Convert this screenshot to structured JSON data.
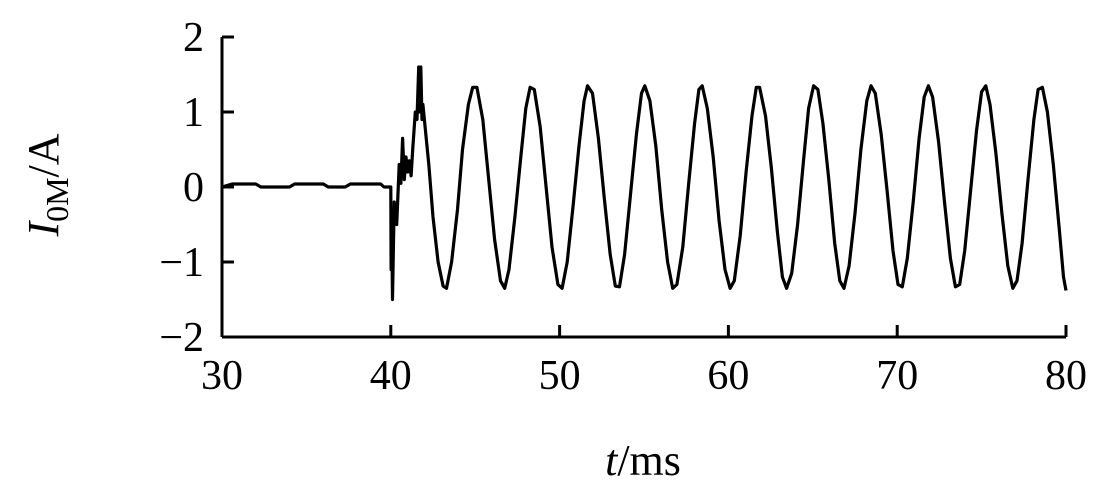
{
  "chart_data": {
    "type": "line",
    "title": "",
    "xlabel": {
      "var": "t",
      "unit": "/ms"
    },
    "ylabel": {
      "var": "I",
      "sub": "0M",
      "unit": "/A"
    },
    "xlim": [
      30,
      80
    ],
    "ylim": [
      -2,
      2
    ],
    "xticks": [
      30,
      40,
      50,
      60,
      70,
      80
    ],
    "yticks": [
      2,
      1,
      0,
      -1,
      -2
    ],
    "ytick_labels": [
      "2",
      "1",
      "0",
      "−1",
      "−2"
    ],
    "grid": false,
    "series": [
      {
        "color": "#000000",
        "points": [
          [
            30.0,
            0.0
          ],
          [
            30.6,
            0.04
          ],
          [
            32.0,
            0.04
          ],
          [
            32.3,
            0.0
          ],
          [
            34.0,
            0.0
          ],
          [
            34.3,
            0.04
          ],
          [
            36.0,
            0.04
          ],
          [
            36.3,
            0.0
          ],
          [
            37.3,
            0.0
          ],
          [
            37.6,
            0.04
          ],
          [
            39.4,
            0.04
          ],
          [
            39.6,
            0.0
          ],
          [
            40.0,
            0.0
          ],
          [
            40.02,
            -1.1
          ],
          [
            40.05,
            -0.4
          ],
          [
            40.1,
            -1.5
          ],
          [
            40.2,
            -0.2
          ],
          [
            40.35,
            -0.5
          ],
          [
            40.5,
            0.3
          ],
          [
            40.6,
            0.05
          ],
          [
            40.7,
            0.65
          ],
          [
            40.8,
            0.1
          ],
          [
            40.9,
            0.4
          ],
          [
            41.0,
            0.2
          ],
          [
            41.1,
            0.35
          ],
          [
            41.2,
            0.15
          ],
          [
            41.3,
            0.5
          ],
          [
            41.45,
            1.0
          ],
          [
            41.55,
            0.9
          ],
          [
            41.65,
            1.6
          ],
          [
            41.72,
            1.0
          ],
          [
            41.78,
            1.6
          ],
          [
            41.85,
            0.9
          ],
          [
            41.9,
            1.1
          ],
          [
            42.25,
            0.3
          ],
          [
            42.5,
            -0.4
          ],
          [
            42.8,
            -1.0
          ],
          [
            43.1,
            -1.32
          ],
          [
            43.3,
            -1.35
          ],
          [
            43.6,
            -1.0
          ],
          [
            43.95,
            -0.3
          ],
          [
            44.25,
            0.5
          ],
          [
            44.6,
            1.1
          ],
          [
            44.85,
            1.33
          ],
          [
            45.1,
            1.33
          ],
          [
            45.45,
            0.9
          ],
          [
            45.8,
            0.1
          ],
          [
            46.15,
            -0.7
          ],
          [
            46.5,
            -1.25
          ],
          [
            46.75,
            -1.35
          ],
          [
            47.0,
            -1.1
          ],
          [
            47.35,
            -0.4
          ],
          [
            47.7,
            0.4
          ],
          [
            48.0,
            1.05
          ],
          [
            48.25,
            1.33
          ],
          [
            48.5,
            1.3
          ],
          [
            48.85,
            0.8
          ],
          [
            49.2,
            0.0
          ],
          [
            49.55,
            -0.8
          ],
          [
            49.9,
            -1.3
          ],
          [
            50.15,
            -1.35
          ],
          [
            50.45,
            -1.0
          ],
          [
            50.8,
            -0.25
          ],
          [
            51.15,
            0.55
          ],
          [
            51.45,
            1.15
          ],
          [
            51.65,
            1.35
          ],
          [
            51.95,
            1.25
          ],
          [
            52.3,
            0.65
          ],
          [
            52.65,
            -0.15
          ],
          [
            53.0,
            -0.9
          ],
          [
            53.3,
            -1.32
          ],
          [
            53.55,
            -1.33
          ],
          [
            53.85,
            -0.9
          ],
          [
            54.2,
            -0.1
          ],
          [
            54.55,
            0.7
          ],
          [
            54.85,
            1.25
          ],
          [
            55.05,
            1.35
          ],
          [
            55.35,
            1.15
          ],
          [
            55.7,
            0.55
          ],
          [
            56.05,
            -0.3
          ],
          [
            56.4,
            -1.0
          ],
          [
            56.7,
            -1.35
          ],
          [
            56.95,
            -1.3
          ],
          [
            57.3,
            -0.8
          ],
          [
            57.65,
            0.05
          ],
          [
            58.0,
            0.85
          ],
          [
            58.25,
            1.3
          ],
          [
            58.45,
            1.35
          ],
          [
            58.75,
            1.05
          ],
          [
            59.1,
            0.4
          ],
          [
            59.45,
            -0.45
          ],
          [
            59.8,
            -1.1
          ],
          [
            60.1,
            -1.35
          ],
          [
            60.35,
            -1.25
          ],
          [
            60.7,
            -0.65
          ],
          [
            61.05,
            0.2
          ],
          [
            61.4,
            0.95
          ],
          [
            61.65,
            1.33
          ],
          [
            61.85,
            1.33
          ],
          [
            62.2,
            0.95
          ],
          [
            62.55,
            0.25
          ],
          [
            62.9,
            -0.6
          ],
          [
            63.2,
            -1.2
          ],
          [
            63.45,
            -1.35
          ],
          [
            63.75,
            -1.15
          ],
          [
            64.1,
            -0.5
          ],
          [
            64.45,
            0.35
          ],
          [
            64.75,
            1.05
          ],
          [
            65.05,
            1.35
          ],
          [
            65.3,
            1.3
          ],
          [
            65.6,
            0.85
          ],
          [
            65.95,
            0.1
          ],
          [
            66.3,
            -0.75
          ],
          [
            66.6,
            -1.25
          ],
          [
            66.85,
            -1.35
          ],
          [
            67.15,
            -1.05
          ],
          [
            67.5,
            -0.35
          ],
          [
            67.85,
            0.5
          ],
          [
            68.2,
            1.15
          ],
          [
            68.45,
            1.35
          ],
          [
            68.7,
            1.25
          ],
          [
            69.05,
            0.7
          ],
          [
            69.4,
            -0.05
          ],
          [
            69.75,
            -0.85
          ],
          [
            70.05,
            -1.3
          ],
          [
            70.3,
            -1.33
          ],
          [
            70.6,
            -0.95
          ],
          [
            70.95,
            -0.2
          ],
          [
            71.3,
            0.65
          ],
          [
            71.6,
            1.2
          ],
          [
            71.85,
            1.35
          ],
          [
            72.1,
            1.2
          ],
          [
            72.45,
            0.6
          ],
          [
            72.8,
            -0.2
          ],
          [
            73.15,
            -0.95
          ],
          [
            73.45,
            -1.33
          ],
          [
            73.7,
            -1.3
          ],
          [
            74.0,
            -0.85
          ],
          [
            74.35,
            -0.05
          ],
          [
            74.7,
            0.75
          ],
          [
            75.0,
            1.27
          ],
          [
            75.25,
            1.35
          ],
          [
            75.5,
            1.1
          ],
          [
            75.85,
            0.45
          ],
          [
            76.2,
            -0.35
          ],
          [
            76.55,
            -1.05
          ],
          [
            76.85,
            -1.35
          ],
          [
            77.1,
            -1.25
          ],
          [
            77.4,
            -0.75
          ],
          [
            77.75,
            0.1
          ],
          [
            78.1,
            0.9
          ],
          [
            78.35,
            1.3
          ],
          [
            78.6,
            1.33
          ],
          [
            78.9,
            1.0
          ],
          [
            79.25,
            0.3
          ],
          [
            79.6,
            -0.55
          ],
          [
            79.85,
            -1.2
          ],
          [
            80.0,
            -1.38
          ]
        ]
      }
    ]
  }
}
